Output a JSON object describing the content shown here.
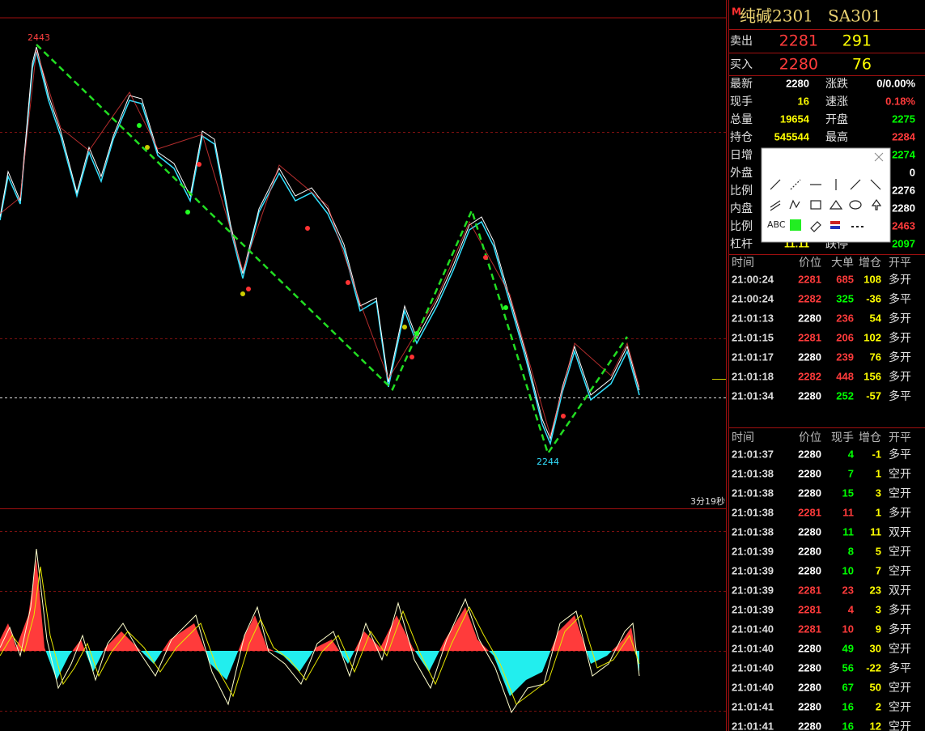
{
  "header": {
    "flag": "M",
    "title": "纯碱2301",
    "code": "SA301"
  },
  "quote": {
    "ask": {
      "label": "卖出",
      "price": "2281",
      "volume": "291"
    },
    "bid": {
      "label": "买入",
      "price": "2280",
      "volume": "76"
    },
    "last": "2280"
  },
  "stats": [
    {
      "label": "最新",
      "value": "2280",
      "color": "#ffffff"
    },
    {
      "label": "涨跌",
      "value": "0/0.00%",
      "color": "#ffffff"
    },
    {
      "label": "现手",
      "value": "16",
      "color": "#ffff00"
    },
    {
      "label": "速涨",
      "value": "0.18%",
      "color": "#ff3b3b"
    },
    {
      "label": "总量",
      "value": "19654",
      "color": "#ffff00"
    },
    {
      "label": "开盘",
      "value": "2275",
      "color": "#00ff00"
    },
    {
      "label": "持仓",
      "value": "545544",
      "color": "#ffff00"
    },
    {
      "label": "最高",
      "value": "2284",
      "color": "#ff3b3b"
    },
    {
      "label": "日增"
    },
    {
      "value": "2274",
      "color": "#00ff00"
    },
    {
      "label": "外盘"
    },
    {
      "value": "0",
      "color": "#ffffff"
    },
    {
      "label": "比例"
    },
    {
      "value": "2276",
      "color": "#ffffff"
    },
    {
      "label": "内盘"
    },
    {
      "value": "2280",
      "color": "#ffffff"
    },
    {
      "label": "比例"
    },
    {
      "value": "2463",
      "color": "#ff3b3b"
    },
    {
      "label": "杠杆",
      "value": "11.11",
      "color": "#ffff00"
    },
    {
      "label": "跌停",
      "value": "2097",
      "color": "#00ff00"
    }
  ],
  "big_orders": {
    "header": [
      "时间",
      "价位",
      "大单",
      "增仓",
      "开平"
    ],
    "rows": [
      {
        "time": "21:00:24",
        "price": "2281",
        "volume": "685",
        "oi": "108",
        "type": "多开",
        "color": "#ff3b3b"
      },
      {
        "time": "21:00:24",
        "price": "2282",
        "volume": "325",
        "oi": "-36",
        "type": "多平",
        "color": "#00ff00"
      },
      {
        "time": "21:01:13",
        "price": "2280",
        "volume": "236",
        "oi": "54",
        "type": "多开",
        "color": "#ff3b3b"
      },
      {
        "time": "21:01:15",
        "price": "2281",
        "volume": "206",
        "oi": "102",
        "type": "多开",
        "color": "#ff3b3b"
      },
      {
        "time": "21:01:17",
        "price": "2280",
        "volume": "239",
        "oi": "76",
        "type": "多开",
        "color": "#ff3b3b"
      },
      {
        "time": "21:01:18",
        "price": "2282",
        "volume": "448",
        "oi": "156",
        "type": "多开",
        "color": "#ff3b3b"
      },
      {
        "time": "21:01:34",
        "price": "2280",
        "volume": "252",
        "oi": "-57",
        "type": "多平",
        "color": "#00ff00"
      }
    ]
  },
  "ticks": {
    "header": [
      "时间",
      "价位",
      "现手",
      "增仓",
      "开平"
    ],
    "rows": [
      {
        "time": "21:01:37",
        "price": "2280",
        "volume": "4",
        "oi": "-1",
        "type": "多平",
        "color": "#00ff00"
      },
      {
        "time": "21:01:38",
        "price": "2280",
        "volume": "7",
        "oi": "1",
        "type": "空开",
        "color": "#00ff00"
      },
      {
        "time": "21:01:38",
        "price": "2280",
        "volume": "15",
        "oi": "3",
        "type": "空开",
        "color": "#00ff00"
      },
      {
        "time": "21:01:38",
        "price": "2281",
        "volume": "11",
        "oi": "1",
        "type": "多开",
        "color": "#ff3b3b"
      },
      {
        "time": "21:01:38",
        "price": "2280",
        "volume": "11",
        "oi": "11",
        "type": "双开",
        "color": "#00ff00"
      },
      {
        "time": "21:01:39",
        "price": "2280",
        "volume": "8",
        "oi": "5",
        "type": "空开",
        "color": "#00ff00"
      },
      {
        "time": "21:01:39",
        "price": "2280",
        "volume": "10",
        "oi": "7",
        "type": "空开",
        "color": "#00ff00"
      },
      {
        "time": "21:01:39",
        "price": "2281",
        "volume": "23",
        "oi": "23",
        "type": "双开",
        "color": "#ff3b3b"
      },
      {
        "time": "21:01:39",
        "price": "2281",
        "volume": "4",
        "oi": "3",
        "type": "多开",
        "color": "#ff3b3b"
      },
      {
        "time": "21:01:40",
        "price": "2281",
        "volume": "10",
        "oi": "9",
        "type": "多开",
        "color": "#ff3b3b"
      },
      {
        "time": "21:01:40",
        "price": "2280",
        "volume": "49",
        "oi": "30",
        "type": "空开",
        "color": "#00ff00"
      },
      {
        "time": "21:01:40",
        "price": "2280",
        "volume": "56",
        "oi": "-22",
        "type": "多平",
        "color": "#00ff00"
      },
      {
        "time": "21:01:40",
        "price": "2280",
        "volume": "67",
        "oi": "50",
        "type": "空开",
        "color": "#00ff00"
      },
      {
        "time": "21:01:41",
        "price": "2280",
        "volume": "16",
        "oi": "2",
        "type": "空开",
        "color": "#00ff00"
      },
      {
        "time": "21:01:41",
        "price": "2280",
        "volume": "16",
        "oi": "12",
        "type": "空开",
        "color": "#00ff00"
      }
    ]
  },
  "chart": {
    "high_label": "2443",
    "low_label": "2244",
    "countdown": "3分19秒"
  },
  "toolbar": {
    "text_tool": "ABC"
  }
}
